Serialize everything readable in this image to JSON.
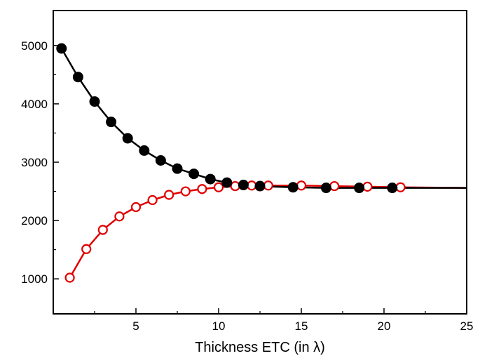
{
  "chart_data": {
    "type": "line",
    "title": "",
    "xlabel": "Thickness ETC (in λ)",
    "ylabel": "",
    "xlim": [
      0,
      25
    ],
    "ylim": [
      400,
      5600
    ],
    "xticks": [
      5,
      10,
      15,
      20,
      25
    ],
    "yticks": [
      1000,
      2000,
      3000,
      4000,
      5000
    ],
    "grid": false,
    "legend": "none",
    "series": [
      {
        "color": "#000000",
        "marker": "filled-circle",
        "line_x": [
          0.5,
          1.5,
          2.5,
          3.5,
          4.5,
          5.5,
          6.5,
          7.5,
          8.5,
          9.5,
          10.5,
          11.5,
          12.5,
          14.5,
          16.5,
          18.5,
          20.5,
          25
        ],
        "line_y": [
          4950,
          4460,
          4040,
          3690,
          3410,
          3200,
          3030,
          2890,
          2800,
          2710,
          2650,
          2610,
          2590,
          2570,
          2560,
          2560,
          2560,
          2560
        ],
        "x": [
          0.5,
          1.5,
          2.5,
          3.5,
          4.5,
          5.5,
          6.5,
          7.5,
          8.5,
          9.5,
          10.5,
          11.5,
          12.5,
          14.5,
          16.5,
          18.5,
          20.5
        ],
        "y": [
          4950,
          4460,
          4040,
          3690,
          3410,
          3200,
          3030,
          2890,
          2800,
          2710,
          2650,
          2610,
          2590,
          2570,
          2560,
          2560,
          2560
        ]
      },
      {
        "color": "#e00000",
        "marker": "open-circle",
        "line_x": [
          1,
          2,
          3,
          4,
          5,
          6,
          7,
          8,
          9,
          10,
          11,
          12,
          13,
          15,
          17,
          19,
          21,
          25
        ],
        "line_y": [
          1020,
          1510,
          1840,
          2070,
          2230,
          2350,
          2440,
          2500,
          2540,
          2570,
          2590,
          2600,
          2600,
          2600,
          2590,
          2580,
          2570,
          2560
        ],
        "x": [
          1,
          2,
          3,
          4,
          5,
          6,
          7,
          8,
          9,
          10,
          11,
          12,
          13,
          15,
          17,
          19,
          21
        ],
        "y": [
          1020,
          1510,
          1840,
          2070,
          2230,
          2350,
          2440,
          2500,
          2540,
          2570,
          2590,
          2600,
          2600,
          2600,
          2590,
          2580,
          2570
        ]
      }
    ]
  }
}
